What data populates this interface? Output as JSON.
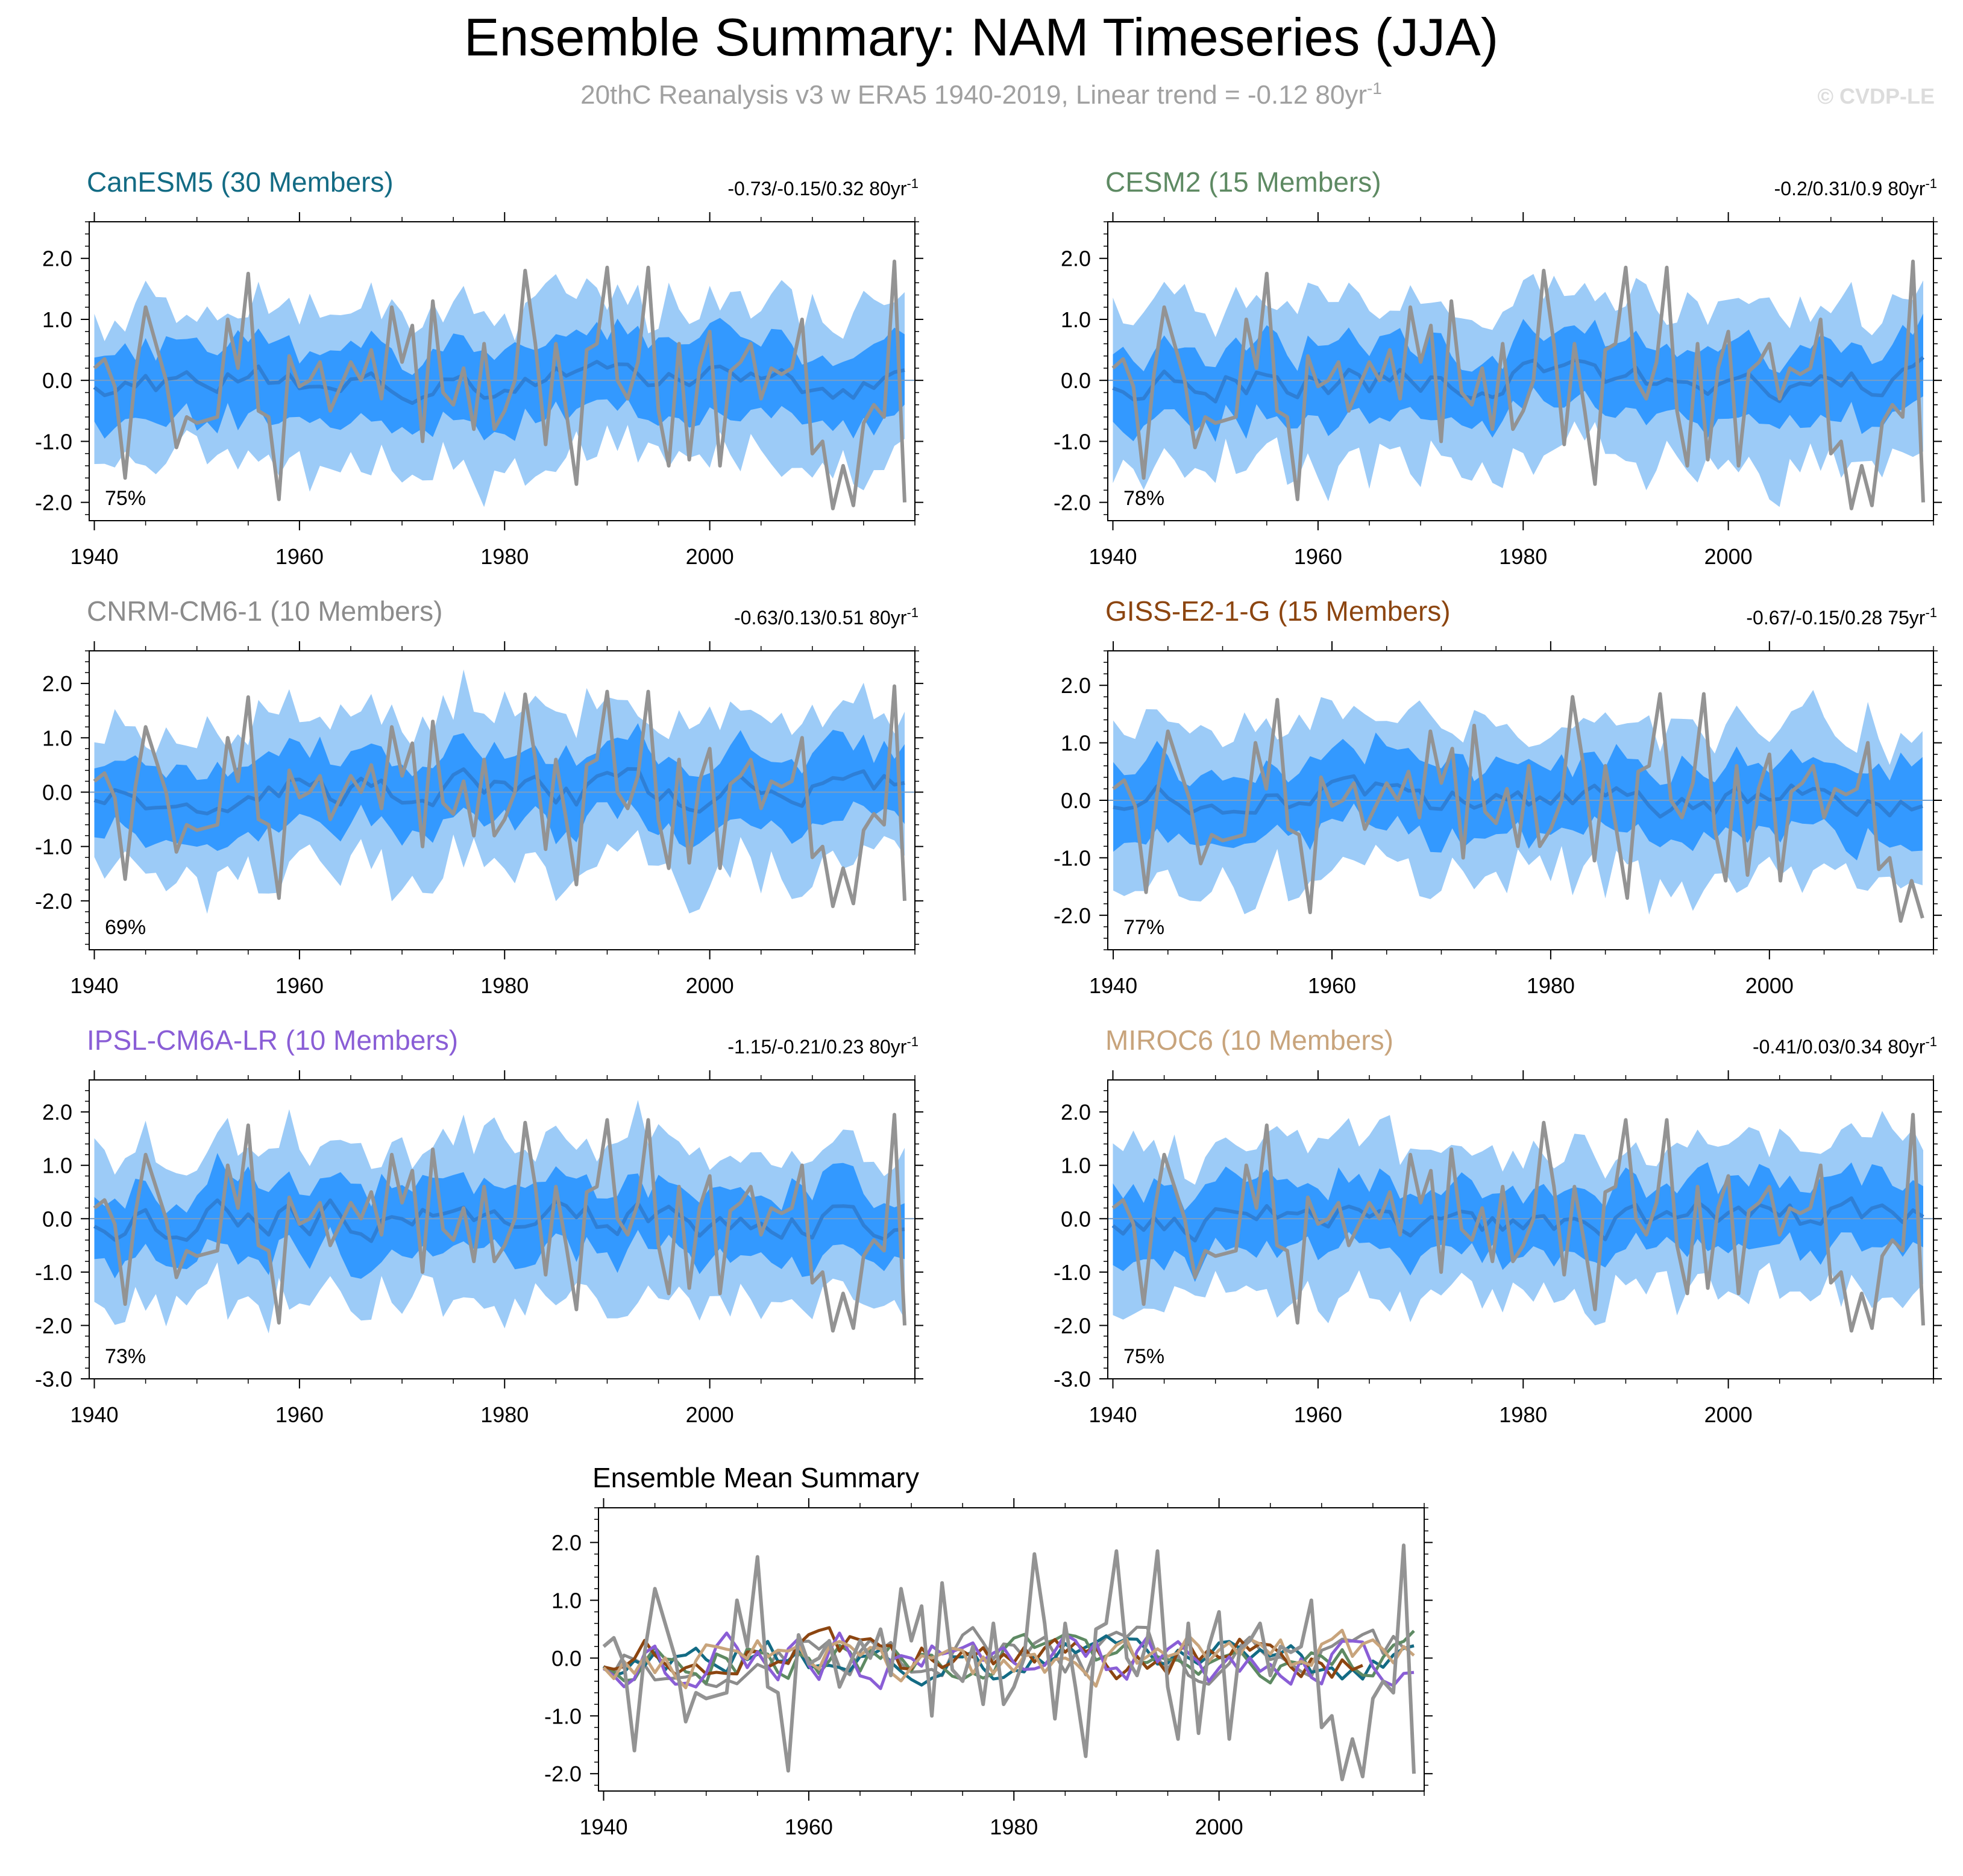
{
  "figure": {
    "title": "Ensemble Summary: NAM Timeseries (JJA)",
    "subtitle": "20thC Reanalysis v3 w ERA5 1940-2019, Linear trend = -0.12 80yr",
    "subtitle_sup": "-1",
    "watermark": "© CVDP-LE"
  },
  "colors": {
    "band_outer": "#9ccbf7",
    "band_inner": "#3399ff",
    "ens_mean": "#2e7fd6",
    "obs": "#939393",
    "title_text": "#000000",
    "subtitle_text": "#a0a0a0",
    "watermark_text": "#dcdcdc"
  },
  "chart_data": [
    {
      "type": "line",
      "panel": "CanESM5",
      "title": "CanESM5 (30 Members)",
      "title_color": "#136b84",
      "trend_label": "-0.73/-0.15/0.32 80yr",
      "trend_sup": "-1",
      "percent_label": "75%",
      "x_start": 1940,
      "x_end": 2019,
      "xlim": [
        1939.5,
        2020.0
      ],
      "ylim": [
        -2.3,
        2.6
      ],
      "xticks": [
        1940,
        1960,
        1980,
        2000
      ],
      "xticklabels": [
        "1940",
        "1960",
        "1980",
        "2000"
      ],
      "yticks": [
        -2.0,
        -1.0,
        0.0,
        1.0,
        2.0
      ],
      "yticklabels": [
        "-2.0",
        "-1.0",
        "0.0",
        "1.0",
        "2.0"
      ],
      "seed": 11,
      "ens_amp": 0.22,
      "inner_w": 0.62,
      "outer_w": 1.12,
      "end": 2019
    },
    {
      "type": "line",
      "panel": "CESM2",
      "title": "CESM2 (15 Members)",
      "title_color": "#5e8a63",
      "trend_label": "-0.2/0.31/0.9 80yr",
      "trend_sup": "-1",
      "percent_label": "78%",
      "x_start": 1940,
      "x_end": 2019,
      "xlim": [
        1939.5,
        2020.0
      ],
      "ylim": [
        -2.3,
        2.6
      ],
      "xticks": [
        1940,
        1960,
        1980,
        2000
      ],
      "xticklabels": [
        "1940",
        "1960",
        "1980",
        "2000"
      ],
      "yticks": [
        -2.0,
        -1.0,
        0.0,
        1.0,
        2.0
      ],
      "yticklabels": [
        "-2.0",
        "-1.0",
        "0.0",
        "1.0",
        "2.0"
      ],
      "seed": 23,
      "ens_amp": 0.25,
      "inner_w": 0.58,
      "outer_w": 1.25,
      "end": 2019
    },
    {
      "type": "line",
      "panel": "CNRM-CM6-1",
      "title": "CNRM-CM6-1 (10 Members)",
      "title_color": "#8c8c8c",
      "trend_label": "-0.63/0.13/0.51 80yr",
      "trend_sup": "-1",
      "percent_label": "69%",
      "x_start": 1940,
      "x_end": 2019,
      "xlim": [
        1939.5,
        2020.0
      ],
      "ylim": [
        -2.9,
        2.6
      ],
      "xticks": [
        1940,
        1960,
        1980,
        2000
      ],
      "xticklabels": [
        "1940",
        "1960",
        "1980",
        "2000"
      ],
      "yticks": [
        -2.0,
        -1.0,
        0.0,
        1.0,
        2.0
      ],
      "yticklabels": [
        "-2.0",
        "-1.0",
        "0.0",
        "1.0",
        "2.0"
      ],
      "seed": 37,
      "ens_amp": 0.3,
      "inner_w": 0.62,
      "outer_w": 1.3,
      "end": 2019
    },
    {
      "type": "line",
      "panel": "GISS-E2-1-G",
      "title": "GISS-E2-1-G (15 Members)",
      "title_color": "#8c4510",
      "trend_label": "-0.67/-0.15/0.28 75yr",
      "trend_sup": "-1",
      "percent_label": "77%",
      "x_start": 1940,
      "x_end": 2014,
      "xlim": [
        1939.5,
        2015.0
      ],
      "ylim": [
        -2.6,
        2.6
      ],
      "xticks": [
        1940,
        1960,
        1980,
        2000
      ],
      "xticklabels": [
        "1940",
        "1960",
        "1980",
        "2000"
      ],
      "yticks": [
        -2.0,
        -1.0,
        0.0,
        1.0,
        2.0
      ],
      "yticklabels": [
        "-2.0",
        "-1.0",
        "0.0",
        "1.0",
        "2.0"
      ],
      "seed": 51,
      "ens_amp": 0.25,
      "inner_w": 0.62,
      "outer_w": 1.2,
      "end": 2014
    },
    {
      "type": "line",
      "panel": "IPSL-CM6A-LR",
      "title": "IPSL-CM6A-LR (10 Members)",
      "title_color": "#8a5ed6",
      "trend_label": "-1.15/-0.21/0.23 80yr",
      "trend_sup": "-1",
      "percent_label": "73%",
      "x_start": 1940,
      "x_end": 2019,
      "xlim": [
        1939.5,
        2020.0
      ],
      "ylim": [
        -3.0,
        2.6
      ],
      "xticks": [
        1940,
        1960,
        1980,
        2000
      ],
      "xticklabels": [
        "1940",
        "1960",
        "1980",
        "2000"
      ],
      "yticks": [
        -3.0,
        -2.0,
        -1.0,
        0.0,
        1.0,
        2.0
      ],
      "yticklabels": [
        "-3.0",
        "-2.0",
        "-1.0",
        "0.0",
        "1.0",
        "2.0"
      ],
      "seed": 67,
      "ens_amp": 0.3,
      "inner_w": 0.65,
      "outer_w": 1.35,
      "end": 2019
    },
    {
      "type": "line",
      "panel": "MIROC6",
      "title": "MIROC6 (10 Members)",
      "title_color": "#c8a47c",
      "trend_label": "-0.41/0.03/0.34 80yr",
      "trend_sup": "-1",
      "percent_label": "75%",
      "x_start": 1940,
      "x_end": 2019,
      "xlim": [
        1939.5,
        2020.0
      ],
      "ylim": [
        -3.0,
        2.6
      ],
      "xticks": [
        1940,
        1960,
        1980,
        2000
      ],
      "xticklabels": [
        "1940",
        "1960",
        "1980",
        "2000"
      ],
      "yticks": [
        -3.0,
        -2.0,
        -1.0,
        0.0,
        1.0,
        2.0
      ],
      "yticklabels": [
        "-3.0",
        "-2.0",
        "-1.0",
        "0.0",
        "1.0",
        "2.0"
      ],
      "seed": 83,
      "ens_amp": 0.28,
      "inner_w": 0.62,
      "outer_w": 1.3,
      "end": 2019
    },
    {
      "type": "line",
      "panel": "Ensemble Mean Summary",
      "title": "Ensemble Mean Summary",
      "x_start": 1940,
      "x_end": 2019,
      "xlim": [
        1939.5,
        2020.0
      ],
      "ylim": [
        -2.3,
        2.6
      ],
      "xticks": [
        1940,
        1960,
        1980,
        2000
      ],
      "xticklabels": [
        "1940",
        "1960",
        "1980",
        "2000"
      ],
      "yticks": [
        -2.0,
        -1.0,
        0.0,
        1.0,
        2.0
      ],
      "yticklabels": [
        "-2.0",
        "-1.0",
        "0.0",
        "1.0",
        "2.0"
      ],
      "series_from_panels": true
    }
  ],
  "observations": {
    "name": "20thC Reanalysis v3 w ERA5",
    "x_start": 1940,
    "values": [
      0.2,
      0.35,
      -0.1,
      -1.6,
      0.1,
      1.2,
      0.6,
      0.0,
      -1.1,
      -0.6,
      -0.7,
      -0.65,
      -0.6,
      1.0,
      0.2,
      1.75,
      -0.5,
      -0.6,
      -1.95,
      0.4,
      -0.1,
      0.0,
      0.3,
      -0.5,
      -0.1,
      0.3,
      0.0,
      0.5,
      -0.3,
      1.2,
      0.3,
      0.9,
      -1.0,
      1.3,
      -0.2,
      -0.4,
      0.2,
      -0.8,
      0.6,
      -0.8,
      -0.5,
      0.0,
      1.8,
      0.6,
      -1.05,
      0.6,
      -0.5,
      -1.7,
      0.5,
      0.6,
      1.85,
      0.0,
      -0.3,
      0.3,
      1.85,
      -0.5,
      -1.4,
      0.6,
      -1.3,
      0.2,
      0.8,
      -1.4,
      0.15,
      0.3,
      0.6,
      -0.3,
      0.2,
      0.1,
      0.2,
      1.0,
      -1.2,
      -1.0,
      -2.1,
      -1.4,
      -2.05,
      -0.7,
      -0.4,
      -0.6,
      1.95,
      -2.0
    ]
  }
}
